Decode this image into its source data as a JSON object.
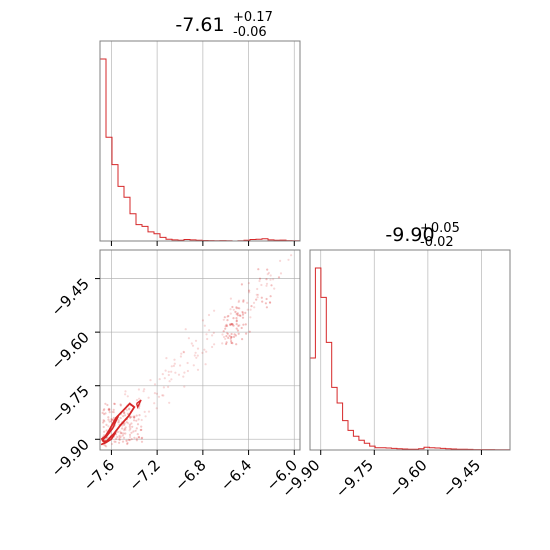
{
  "figure": {
    "type": "corner-plot",
    "line_color": "#d62728",
    "grid": true
  },
  "chart_data": [
    {
      "panel": "hist-param1",
      "type": "histogram",
      "title": {
        "median": "-7.61",
        "upper": "+0.17",
        "lower": "-0.06"
      },
      "xlim": [
        -7.7,
        -5.95
      ],
      "xticks": [
        -7.6,
        -7.2,
        -6.8,
        -6.4,
        -6.0
      ],
      "show_tick_labels": false,
      "bins": {
        "start": -7.7,
        "width": 0.0525,
        "counts": [
          1.0,
          0.57,
          0.42,
          0.3,
          0.24,
          0.15,
          0.09,
          0.08,
          0.05,
          0.04,
          0.02,
          0.01,
          0.006,
          0.004,
          0.008,
          0.006,
          0.004,
          0.003,
          0.002,
          0.001,
          0.002,
          0.001,
          0.0,
          0.001,
          0.004,
          0.008,
          0.01,
          0.012,
          0.006,
          0.004,
          0.005,
          0.002,
          0.001,
          0.001
        ]
      }
    },
    {
      "panel": "hist-param2",
      "type": "histogram",
      "title": {
        "median": "-9.90",
        "upper": "+0.05",
        "lower": "-0.02"
      },
      "xlim": [
        -9.93,
        -9.37
      ],
      "xticks": [
        -9.9,
        -9.75,
        -9.6,
        -9.45
      ],
      "xtick_labels": [
        "−9.90",
        "−9.75",
        "−9.60",
        "−9.45"
      ],
      "bins": {
        "start": -9.93,
        "width": 0.0152,
        "counts": [
          0.47,
          0.93,
          0.78,
          0.55,
          0.32,
          0.24,
          0.15,
          0.1,
          0.07,
          0.05,
          0.035,
          0.02,
          0.012,
          0.012,
          0.01,
          0.008,
          0.006,
          0.005,
          0.004,
          0.004,
          0.006,
          0.014,
          0.012,
          0.01,
          0.008,
          0.006,
          0.005,
          0.004,
          0.004,
          0.003,
          0.002,
          0.002,
          0.002,
          0.002,
          0.001,
          0.001,
          0.001
        ]
      }
    },
    {
      "panel": "joint-param1-param2",
      "type": "scatter-contour",
      "xlim": [
        -7.7,
        -5.95
      ],
      "ylim": [
        -9.93,
        -9.37
      ],
      "xticks": [
        -7.6,
        -7.2,
        -6.8,
        -6.4,
        -6.0
      ],
      "xtick_labels": [
        "−7.6",
        "−7.2",
        "−6.8",
        "−6.4",
        "−6.0"
      ],
      "yticks": [
        -9.9,
        -9.75,
        -9.6,
        -9.45
      ],
      "ytick_labels": [
        "−9.90",
        "−9.75",
        "−9.60",
        "−9.45"
      ],
      "contours": [
        [
          [
            -7.68,
            -9.905
          ],
          [
            -7.62,
            -9.875
          ],
          [
            -7.56,
            -9.84
          ],
          [
            -7.5,
            -9.82
          ],
          [
            -7.44,
            -9.8
          ],
          [
            -7.4,
            -9.81
          ],
          [
            -7.45,
            -9.835
          ],
          [
            -7.52,
            -9.86
          ],
          [
            -7.58,
            -9.885
          ],
          [
            -7.64,
            -9.905
          ],
          [
            -7.68,
            -9.905
          ]
        ],
        [
          [
            -7.69,
            -9.9
          ],
          [
            -7.63,
            -9.885
          ],
          [
            -7.58,
            -9.865
          ],
          [
            -7.56,
            -9.84
          ],
          [
            -7.54,
            -9.835
          ],
          [
            -7.59,
            -9.87
          ],
          [
            -7.65,
            -9.895
          ],
          [
            -7.69,
            -9.9
          ]
        ],
        [
          [
            -7.69,
            -9.915
          ],
          [
            -7.64,
            -9.905
          ],
          [
            -7.6,
            -9.89
          ],
          [
            -7.57,
            -9.885
          ],
          [
            -7.6,
            -9.9
          ],
          [
            -7.65,
            -9.91
          ],
          [
            -7.69,
            -9.915
          ]
        ],
        [
          [
            -7.38,
            -9.8
          ],
          [
            -7.34,
            -9.79
          ],
          [
            -7.37,
            -9.81
          ],
          [
            -7.38,
            -9.8
          ]
        ]
      ],
      "scatter_trend": {
        "x0": -7.65,
        "y0": -9.9,
        "x1": -6.05,
        "y1": -9.4
      },
      "scatter_clusters": [
        {
          "x": -6.55,
          "y": -9.6,
          "spread_x": 0.05,
          "spread_y": 0.03,
          "n": 45
        },
        {
          "x": -6.45,
          "y": -9.54,
          "spread_x": 0.04,
          "spread_y": 0.03,
          "n": 18
        },
        {
          "x": -6.25,
          "y": -9.48,
          "spread_x": 0.05,
          "spread_y": 0.03,
          "n": 14
        }
      ]
    }
  ]
}
